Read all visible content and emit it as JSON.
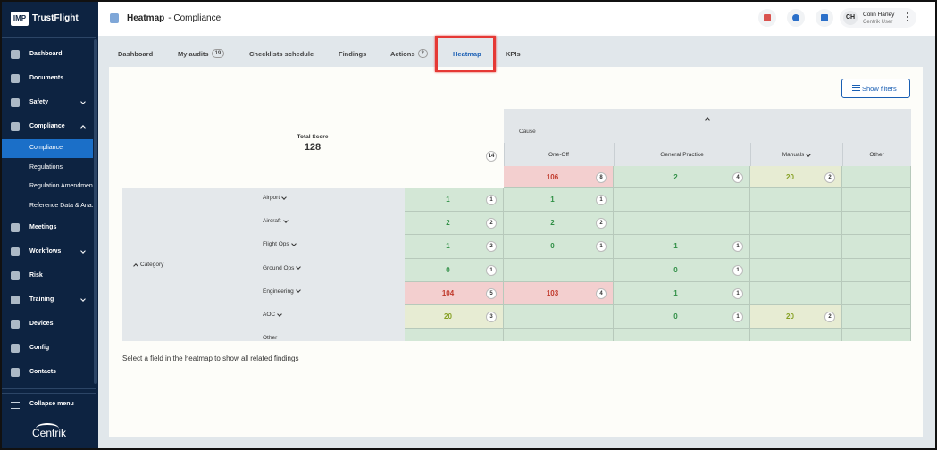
{
  "sidebar": {
    "logo": "IMP",
    "brand": "TrustFlight",
    "items": [
      {
        "label": "Dashboard"
      },
      {
        "label": "Documents"
      },
      {
        "label": "Safety",
        "expandable": true
      },
      {
        "label": "Compliance",
        "expandable": true,
        "expanded": true,
        "children": [
          {
            "label": "Compliance",
            "active": true
          },
          {
            "label": "Regulations"
          },
          {
            "label": "Regulation Amendments"
          },
          {
            "label": "Reference Data & Ana..."
          }
        ]
      },
      {
        "label": "Meetings"
      },
      {
        "label": "Workflows",
        "expandable": true
      },
      {
        "label": "Risk"
      },
      {
        "label": "Training",
        "expandable": true
      },
      {
        "label": "Devices"
      },
      {
        "label": "Config"
      },
      {
        "label": "Contacts"
      }
    ],
    "collapse": "Collapse menu",
    "footer_logo": "Centrik"
  },
  "header": {
    "title": "Heatmap",
    "subtitle": "- Compliance",
    "user": {
      "initials": "CH",
      "name": "Colin Harley",
      "role": "Centrik User"
    }
  },
  "tabs": [
    {
      "label": "Dashboard"
    },
    {
      "label": "My audits",
      "count": 19
    },
    {
      "label": "Checklists schedule"
    },
    {
      "label": "Findings"
    },
    {
      "label": "Actions",
      "count": 2
    },
    {
      "label": "Heatmap",
      "active": true,
      "highlighted": true
    },
    {
      "label": "KPIs"
    }
  ],
  "filters_button": "Show filters",
  "heatmap": {
    "total_label": "Total Score",
    "total": 128,
    "total_count": 14,
    "column_group": "Cause",
    "row_group": "Category",
    "columns": [
      {
        "label": "One-Off"
      },
      {
        "label": "General Practice"
      },
      {
        "label": "Manuals",
        "dropdown": true
      },
      {
        "label": "Other"
      }
    ],
    "column_totals": [
      {
        "value": 106,
        "count": 8,
        "level": "high"
      },
      {
        "value": 2,
        "count": 4,
        "level": "low"
      },
      {
        "value": 20,
        "count": 2,
        "level": "mid"
      },
      null
    ],
    "rows": [
      {
        "label": "Airport",
        "dropdown": true,
        "total": {
          "value": 1,
          "count": 1,
          "level": "low"
        },
        "cells": [
          {
            "value": 1,
            "count": 1,
            "level": "low"
          },
          null,
          null,
          null
        ]
      },
      {
        "label": "Aircraft",
        "dropdown": true,
        "total": {
          "value": 2,
          "count": 2,
          "level": "low"
        },
        "cells": [
          {
            "value": 2,
            "count": 2,
            "level": "low"
          },
          null,
          null,
          null
        ]
      },
      {
        "label": "Flight Ops",
        "dropdown": true,
        "total": {
          "value": 1,
          "count": 2,
          "level": "low"
        },
        "cells": [
          {
            "value": 0,
            "count": 1,
            "level": "low"
          },
          {
            "value": 1,
            "count": 1,
            "level": "low"
          },
          null,
          null
        ]
      },
      {
        "label": "Ground Ops",
        "dropdown": true,
        "total": {
          "value": 0,
          "count": 1,
          "level": "low"
        },
        "cells": [
          null,
          {
            "value": 0,
            "count": 1,
            "level": "low"
          },
          null,
          null
        ]
      },
      {
        "label": "Engineering",
        "dropdown": true,
        "total": {
          "value": 104,
          "count": 5,
          "level": "high"
        },
        "cells": [
          {
            "value": 103,
            "count": 4,
            "level": "high"
          },
          {
            "value": 1,
            "count": 1,
            "level": "low"
          },
          null,
          null
        ]
      },
      {
        "label": "AOC",
        "dropdown": true,
        "total": {
          "value": 20,
          "count": 3,
          "level": "mid"
        },
        "cells": [
          null,
          {
            "value": 0,
            "count": 1,
            "level": "low"
          },
          {
            "value": 20,
            "count": 2,
            "level": "mid"
          },
          null
        ]
      },
      {
        "label": "Other",
        "total": null,
        "cells": [
          null,
          null,
          null,
          null
        ]
      }
    ]
  },
  "hint": "Select a field in the heatmap to show all related findings"
}
